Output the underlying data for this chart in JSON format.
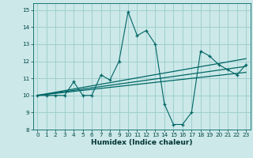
{
  "title": "",
  "xlabel": "Humidex (Indice chaleur)",
  "bg_color": "#cce8e8",
  "grid_color": "#99cccc",
  "line_color": "#006666",
  "xlim": [
    -0.5,
    23.5
  ],
  "ylim": [
    8,
    15.4
  ],
  "xticks": [
    0,
    1,
    2,
    3,
    4,
    5,
    6,
    7,
    8,
    9,
    10,
    11,
    12,
    13,
    14,
    15,
    16,
    17,
    18,
    19,
    20,
    21,
    22,
    23
  ],
  "yticks": [
    8,
    9,
    10,
    11,
    12,
    13,
    14,
    15
  ],
  "series1_x": [
    0,
    1,
    2,
    3,
    4,
    5,
    6,
    7,
    8,
    9,
    10,
    11,
    12,
    13,
    14,
    15,
    16,
    17,
    18,
    19,
    20,
    21,
    22,
    23
  ],
  "series1_y": [
    10.0,
    10.0,
    10.0,
    10.0,
    10.8,
    10.0,
    10.0,
    11.2,
    10.9,
    12.0,
    14.9,
    13.5,
    13.8,
    13.0,
    9.5,
    8.3,
    8.3,
    9.0,
    12.6,
    12.3,
    11.8,
    11.5,
    11.2,
    11.8
  ],
  "trend1_x": [
    0,
    23
  ],
  "trend1_y": [
    10.0,
    12.15
  ],
  "trend2_x": [
    0,
    23
  ],
  "trend2_y": [
    10.0,
    11.7
  ],
  "trend3_x": [
    0,
    23
  ],
  "trend3_y": [
    10.0,
    11.35
  ],
  "tick_fontsize": 5.2,
  "xlabel_fontsize": 6.5
}
